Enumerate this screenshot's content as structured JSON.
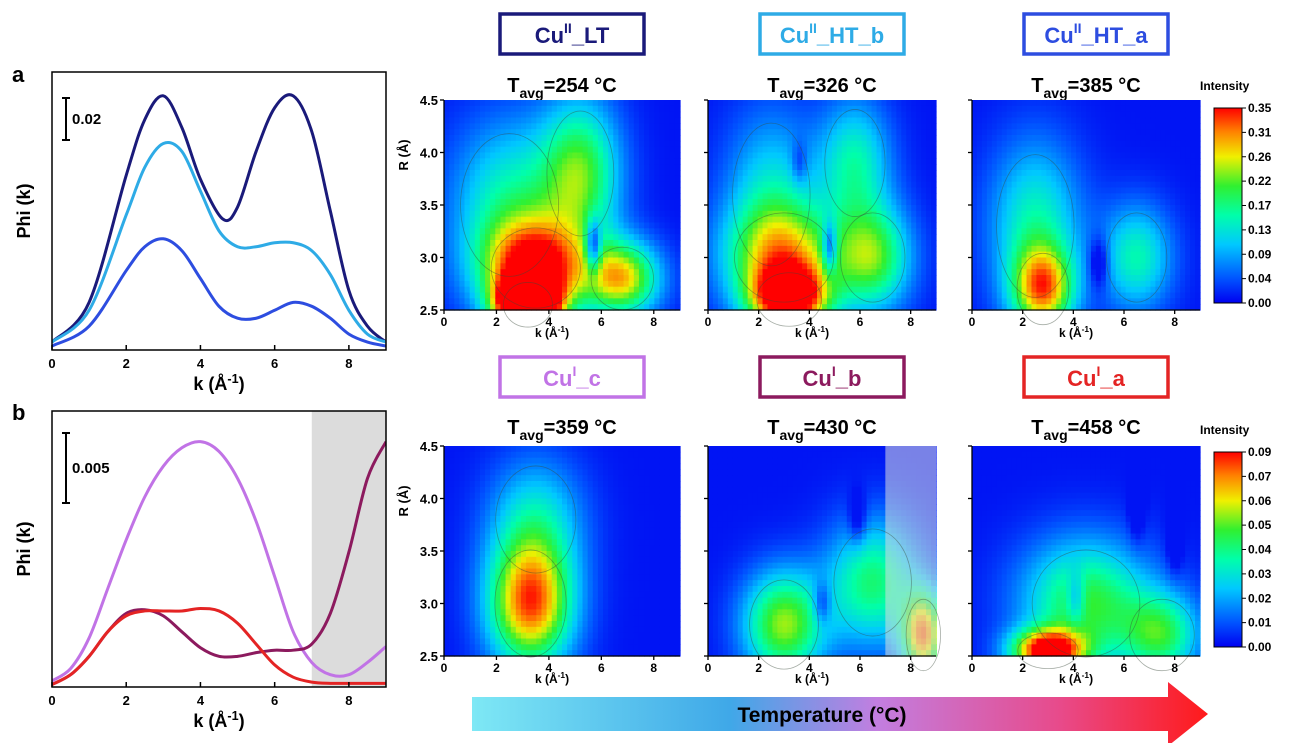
{
  "panels": {
    "a_label": "a",
    "b_label": "b"
  },
  "chart_data": [
    {
      "type": "line",
      "id": "a",
      "xlabel": "k (Å⁻¹)",
      "ylabel": "Phi (k)",
      "xlim": [
        0,
        9
      ],
      "xticks": [
        "0",
        "2",
        "4",
        "6",
        "8"
      ],
      "scale_bar": "0.02",
      "series": [
        {
          "color": "#1a1a7a",
          "x": [
            0,
            1,
            2,
            2.5,
            3,
            3.5,
            4,
            4.6,
            5,
            5.5,
            6,
            6.5,
            7,
            7.5,
            8,
            8.5,
            9
          ],
          "y": [
            0.002,
            0.012,
            0.044,
            0.058,
            0.064,
            0.056,
            0.043,
            0.033,
            0.036,
            0.05,
            0.061,
            0.064,
            0.055,
            0.035,
            0.015,
            0.006,
            0.002
          ]
        },
        {
          "color": "#2eabe6",
          "x": [
            0,
            1,
            2,
            2.5,
            3,
            3.5,
            4,
            4.5,
            5,
            5.5,
            6,
            6.5,
            7,
            7.5,
            8,
            8.5,
            9
          ],
          "y": [
            0.002,
            0.01,
            0.034,
            0.046,
            0.052,
            0.05,
            0.04,
            0.03,
            0.026,
            0.026,
            0.027,
            0.027,
            0.025,
            0.019,
            0.01,
            0.004,
            0.002
          ]
        },
        {
          "color": "#2d4de0",
          "x": [
            0,
            1,
            2,
            2.5,
            3,
            3.5,
            4,
            4.5,
            5,
            5.5,
            6,
            6.5,
            7,
            7.5,
            8,
            8.5,
            9
          ],
          "y": [
            0.001,
            0.006,
            0.02,
            0.026,
            0.028,
            0.025,
            0.018,
            0.011,
            0.008,
            0.008,
            0.01,
            0.012,
            0.011,
            0.008,
            0.004,
            0.002,
            0.001
          ]
        }
      ]
    },
    {
      "type": "line",
      "id": "b",
      "xlabel": "k (Å⁻¹)",
      "ylabel": "Phi (k)",
      "xlim": [
        0,
        9
      ],
      "xticks": [
        "0",
        "2",
        "4",
        "6",
        "8"
      ],
      "scale_bar": "0.005",
      "shaded_region": [
        7,
        9
      ],
      "series": [
        {
          "color": "#c173e6",
          "x": [
            0,
            0.5,
            1,
            1.5,
            2,
            2.5,
            3,
            3.5,
            4,
            4.5,
            5,
            5.5,
            6,
            6.5,
            7,
            7.5,
            8,
            8.5,
            9
          ],
          "y": [
            0.0005,
            0.0015,
            0.004,
            0.008,
            0.012,
            0.0155,
            0.018,
            0.0195,
            0.02,
            0.0192,
            0.017,
            0.0135,
            0.009,
            0.0045,
            0.002,
            0.001,
            0.001,
            0.002,
            0.0033
          ]
        },
        {
          "color": "#8c1a5e",
          "x": [
            0,
            0.5,
            1,
            1.5,
            2,
            2.5,
            3,
            3.5,
            4,
            4.5,
            5,
            5.5,
            6,
            6.5,
            7,
            7.5,
            8,
            8.5,
            9
          ],
          "y": [
            0.0002,
            0.001,
            0.0025,
            0.0045,
            0.006,
            0.0063,
            0.0058,
            0.0045,
            0.0032,
            0.0025,
            0.0025,
            0.0028,
            0.003,
            0.003,
            0.0035,
            0.006,
            0.011,
            0.017,
            0.02
          ]
        },
        {
          "color": "#e42424",
          "x": [
            0,
            0.5,
            1,
            1.5,
            2,
            2.5,
            3,
            3.5,
            4,
            4.5,
            5,
            5.5,
            6,
            6.5,
            7,
            7.5,
            8,
            8.5,
            9
          ],
          "y": [
            0.0002,
            0.001,
            0.0025,
            0.0045,
            0.0058,
            0.0062,
            0.0062,
            0.0062,
            0.0064,
            0.0062,
            0.0052,
            0.0035,
            0.0018,
            0.0008,
            0.0004,
            0.0003,
            0.0003,
            0.0003,
            0.0003
          ]
        }
      ]
    },
    {
      "type": "heatmap",
      "id": "c1",
      "label": {
        "base": "Cu",
        "sup": "II",
        "rest": "_LT"
      },
      "label_color": "#1a1a7a",
      "tavg": {
        "pre": "T",
        "sub": "avg",
        "post": "=254 °C"
      },
      "xlabel": "k (Å⁻¹)",
      "ylabel": "R (Å)",
      "xlim": [
        0,
        9
      ],
      "ylim": [
        2.5,
        4.5
      ],
      "xticks": [
        "0",
        "2",
        "4",
        "6",
        "8"
      ],
      "yticks": [
        "2.5",
        "3.0",
        "3.5",
        "4.0",
        "4.5"
      ],
      "blobs": [
        [
          3.2,
          2.55,
          1.1,
          0.25,
          1.0
        ],
        [
          3.5,
          2.9,
          2.0,
          0.45,
          0.55
        ],
        [
          6.8,
          2.8,
          1.4,
          0.35,
          0.45
        ],
        [
          5.2,
          3.8,
          1.5,
          0.7,
          0.35
        ],
        [
          2.5,
          3.5,
          2.2,
          0.8,
          0.25
        ]
      ],
      "holes": [
        [
          5.7,
          3.1,
          0.3,
          0.25,
          0.3
        ]
      ],
      "scale": 0.6
    },
    {
      "type": "heatmap",
      "id": "c2",
      "label": {
        "base": "Cu",
        "sup": "II",
        "rest": "_HT_b"
      },
      "label_color": "#2eabe6",
      "tavg": {
        "pre": "T",
        "sub": "avg",
        "post": "=326 °C"
      },
      "xlabel": "k (Å⁻¹)",
      "ylabel": "",
      "xlim": [
        0,
        9
      ],
      "ylim": [
        2.5,
        4.5
      ],
      "xticks": [
        "0",
        "2",
        "4",
        "6",
        "8"
      ],
      "yticks": [],
      "blobs": [
        [
          3.2,
          2.6,
          1.5,
          0.3,
          0.6
        ],
        [
          3.0,
          3.0,
          2.3,
          0.5,
          0.4
        ],
        [
          6.5,
          3.0,
          1.5,
          0.5,
          0.35
        ],
        [
          5.8,
          3.9,
          1.4,
          0.6,
          0.25
        ],
        [
          2.5,
          3.6,
          1.8,
          0.8,
          0.2
        ]
      ],
      "holes": [
        [
          4.8,
          3.1,
          0.3,
          0.25,
          0.25
        ],
        [
          3.6,
          3.9,
          0.3,
          0.2,
          0.1
        ]
      ],
      "scale": 0.6
    },
    {
      "type": "heatmap",
      "id": "c3",
      "label": {
        "base": "Cu",
        "sup": "II",
        "rest": "_HT_a"
      },
      "label_color": "#2d4de0",
      "tavg": {
        "pre": "T",
        "sub": "avg",
        "post": "=385 °C"
      },
      "xlabel": "k (Å⁻¹)",
      "ylabel": "",
      "xlim": [
        0,
        9
      ],
      "ylim": [
        2.5,
        4.5
      ],
      "xticks": [
        "0",
        "2",
        "4",
        "6",
        "8"
      ],
      "yticks": [],
      "blobs": [
        [
          2.8,
          2.7,
          1.2,
          0.4,
          0.45
        ],
        [
          2.5,
          3.3,
          1.8,
          0.8,
          0.25
        ],
        [
          6.5,
          3.0,
          1.4,
          0.5,
          0.25
        ]
      ],
      "holes": [
        [
          5.0,
          2.95,
          0.4,
          0.25,
          0.15
        ]
      ],
      "scale": 0.6
    },
    {
      "type": "heatmap",
      "id": "d1",
      "label": {
        "base": "Cu",
        "sup": "I",
        "rest": "_c"
      },
      "label_color": "#c173e6",
      "tavg": {
        "pre": "T",
        "sub": "avg",
        "post": "=359 °C"
      },
      "xlabel": "k (Å⁻¹)",
      "ylabel": "R (Å)",
      "xlim": [
        0,
        9
      ],
      "ylim": [
        2.5,
        4.5
      ],
      "xticks": [
        "0",
        "2",
        "4",
        "6",
        "8"
      ],
      "yticks": [
        "2.5",
        "3.0",
        "3.5",
        "4.0",
        "4.5"
      ],
      "blobs": [
        [
          3.3,
          3.0,
          1.6,
          0.6,
          0.55
        ],
        [
          3.5,
          3.8,
          1.8,
          0.6,
          0.2
        ]
      ],
      "holes": [],
      "scale": 0.6
    },
    {
      "type": "heatmap",
      "id": "d2",
      "label": {
        "base": "Cu",
        "sup": "I",
        "rest": "_b"
      },
      "label_color": "#8c1a5e",
      "tavg": {
        "pre": "T",
        "sub": "avg",
        "post": "=430 °C"
      },
      "xlabel": "k (Å⁻¹)",
      "ylabel": "",
      "xlim": [
        0,
        9
      ],
      "ylim": [
        2.5,
        4.5
      ],
      "xticks": [
        "0",
        "2",
        "4",
        "6",
        "8"
      ],
      "yticks": [],
      "shaded_region": [
        7,
        9
      ],
      "blobs": [
        [
          3.0,
          2.8,
          1.6,
          0.5,
          0.4
        ],
        [
          6.5,
          3.2,
          1.8,
          0.6,
          0.3
        ],
        [
          8.5,
          2.7,
          0.8,
          0.4,
          0.5
        ]
      ],
      "holes": [
        [
          4.5,
          3.0,
          0.35,
          0.2,
          0.15
        ],
        [
          5.9,
          3.8,
          0.35,
          0.25,
          0.12
        ]
      ],
      "scale": 0.6
    },
    {
      "type": "heatmap",
      "id": "d3",
      "label": {
        "base": "Cu",
        "sup": "I",
        "rest": "_a"
      },
      "label_color": "#e42424",
      "tavg": {
        "pre": "T",
        "sub": "avg",
        "post": "=458 °C"
      },
      "xlabel": "k (Å⁻¹)",
      "ylabel": "",
      "xlim": [
        0,
        9
      ],
      "ylim": [
        2.5,
        4.5
      ],
      "xticks": [
        "0",
        "2",
        "4",
        "6",
        "8"
      ],
      "yticks": [],
      "blobs": [
        [
          3.0,
          2.55,
          1.4,
          0.2,
          0.6
        ],
        [
          4.5,
          3.0,
          2.5,
          0.6,
          0.35
        ],
        [
          7.5,
          2.7,
          1.5,
          0.4,
          0.3
        ]
      ],
      "holes": [
        [
          4.1,
          3.05,
          0.35,
          0.25,
          0.15
        ],
        [
          6.5,
          3.9,
          0.3,
          0.3,
          0.1
        ],
        [
          8.0,
          3.6,
          0.3,
          0.3,
          0.1
        ]
      ],
      "scale": 0.6
    }
  ],
  "colorbars": [
    {
      "title": "Intensity",
      "ticks": [
        "0.35",
        "0.31",
        "0.26",
        "0.22",
        "0.17",
        "0.13",
        "0.09",
        "0.04",
        "0.00"
      ]
    },
    {
      "title": "Intensity",
      "ticks": [
        "0.09",
        "0.07",
        "0.06",
        "0.05",
        "0.04",
        "0.03",
        "0.02",
        "0.01",
        "0.00"
      ]
    }
  ],
  "arrow": {
    "label": "Temperature (°C)"
  }
}
